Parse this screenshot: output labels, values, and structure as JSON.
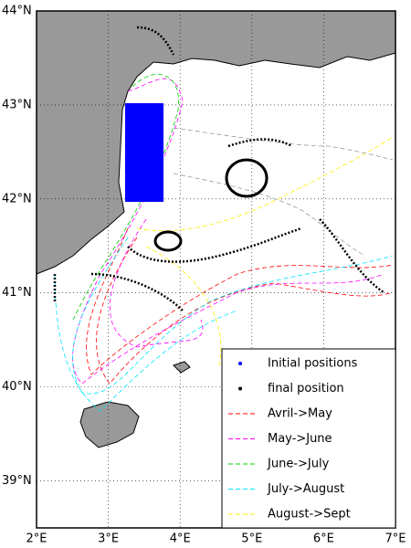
{
  "map": {
    "xlim": [
      2,
      7
    ],
    "ylim": [
      38.5,
      44
    ],
    "xticks": [
      {
        "value": 2,
        "label": "2°E"
      },
      {
        "value": 3,
        "label": "3°E"
      },
      {
        "value": 4,
        "label": "4°E"
      },
      {
        "value": 5,
        "label": "5°E"
      },
      {
        "value": 6,
        "label": "6°E"
      },
      {
        "value": 7,
        "label": "7°E"
      }
    ],
    "yticks": [
      {
        "value": 39,
        "label": "39°N"
      },
      {
        "value": 40,
        "label": "40°N"
      },
      {
        "value": 41,
        "label": "41°N"
      },
      {
        "value": 42,
        "label": "42°N"
      },
      {
        "value": 43,
        "label": "43°N"
      },
      {
        "value": 44,
        "label": "44°N"
      }
    ],
    "grid": true,
    "legend": [
      {
        "name": "Initial positions",
        "color": "#0000ff",
        "marker": "dot"
      },
      {
        "name": "final position",
        "color": "#000000",
        "marker": "dot"
      },
      {
        "name": "Avril->May",
        "color": "#ff0000",
        "marker": "dash"
      },
      {
        "name": "May->June",
        "color": "#ff00ff",
        "marker": "dash"
      },
      {
        "name": "June->July",
        "color": "#00cc00",
        "marker": "dash"
      },
      {
        "name": "July->August",
        "color": "#00e5ff",
        "marker": "dash"
      },
      {
        "name": "August->Sept",
        "color": "#ffee00",
        "marker": "dash"
      }
    ]
  }
}
